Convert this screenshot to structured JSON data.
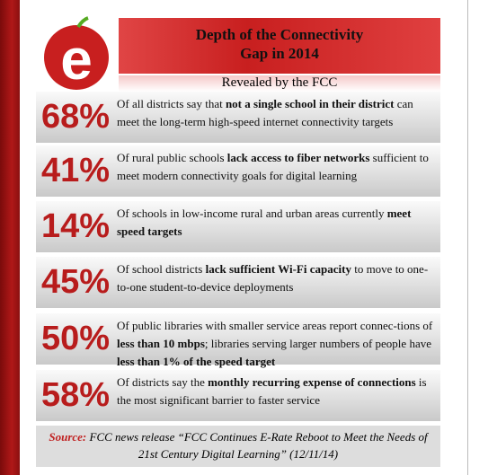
{
  "header": {
    "logo": "e",
    "title_lines": [
      "Depth of the Connectivity",
      "Gap in 2014"
    ],
    "subtitle": "Revealed by the FCC"
  },
  "stats": [
    {
      "percent": "68%",
      "segments": [
        "Of all districts say that ",
        "not a single school in their district",
        " can meet the long-term high-speed internet connectivity targets"
      ]
    },
    {
      "percent": "41%",
      "segments": [
        "Of rural public schools ",
        "lack access to fiber networks",
        " sufficient to meet modern connectivity goals for digital learning"
      ]
    },
    {
      "percent": "14%",
      "segments": [
        "Of schools in low-income rural and urban areas currently ",
        "meet speed targets"
      ]
    },
    {
      "percent": "45%",
      "segments": [
        "Of school districts ",
        "lack sufficient Wi-Fi capacity",
        " to move to one-to-one student-to-device deployments"
      ]
    },
    {
      "percent": "50%",
      "segments": [
        "Of public libraries with smaller service areas report connec-tions of ",
        "less than 10 mbps",
        "; libraries serving larger numbers of people have ",
        "less than 1% of the speed target"
      ]
    },
    {
      "percent": "58%",
      "segments": [
        "Of districts say the ",
        "monthly recurring expense of connections",
        " is the most significant barrier to faster service"
      ]
    }
  ],
  "source": {
    "label": "Source:",
    "text": "FCC news release “FCC Continues E-Rate Reboot to Meet the  Needs of 21st Century Digital Learning” (12/11/14)"
  }
}
